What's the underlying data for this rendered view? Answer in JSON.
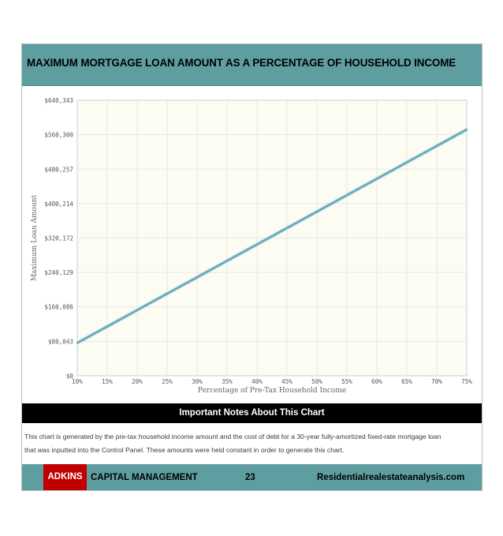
{
  "header": {
    "title": "MAXIMUM MORTGAGE LOAN AMOUNT AS A PERCENTAGE OF HOUSEHOLD INCOME"
  },
  "chart_data": {
    "type": "line",
    "title": "",
    "xlabel": "Percentage of Pre-Tax Household Income",
    "ylabel": "Maximum Loan Amount",
    "x": [
      10,
      15,
      20,
      25,
      30,
      35,
      40,
      45,
      50,
      55,
      60,
      65,
      70,
      75
    ],
    "x_tick_labels": [
      "10%",
      "15%",
      "20%",
      "25%",
      "30%",
      "35%",
      "40%",
      "45%",
      "50%",
      "55%",
      "60%",
      "65%",
      "70%",
      "75%"
    ],
    "y_ticks": [
      0,
      80043,
      160086,
      240129,
      320172,
      400214,
      480257,
      560300,
      640343
    ],
    "y_tick_labels": [
      "$0",
      "$80,043",
      "$160,086",
      "$240,129",
      "$320,172",
      "$400,214",
      "$480,257",
      "$560,300",
      "$640,343"
    ],
    "xlim": [
      10,
      75
    ],
    "ylim": [
      0,
      640343
    ],
    "grid": true,
    "series": [
      {
        "values": [
          76300,
          114500,
          152600,
          190800,
          228900,
          267100,
          305200,
          343400,
          381500,
          419700,
          457800,
          496000,
          534100,
          572300
        ]
      }
    ],
    "colors": {
      "line": "#5aa3b5",
      "plot_bg": "#fdfcf3",
      "grid": "#e6e6e6"
    }
  },
  "notes": {
    "title": "Important Notes About This Chart",
    "line1": "This chart is generated by the pre-tax household income amount and the cost of debt for a 30-year fully-amortized fixed-rate mortgage loan",
    "line2": "that was inputted into the Control Panel. These amounts were held constant in order to generate this chart."
  },
  "footer": {
    "brand": "ADKINS",
    "company": "CAPITAL MANAGEMENT",
    "page": "23",
    "site": "Residentialrealestateanalysis.com"
  },
  "colors": {
    "header_bg": "#5f9ea0",
    "brand_red": "#c00000"
  }
}
